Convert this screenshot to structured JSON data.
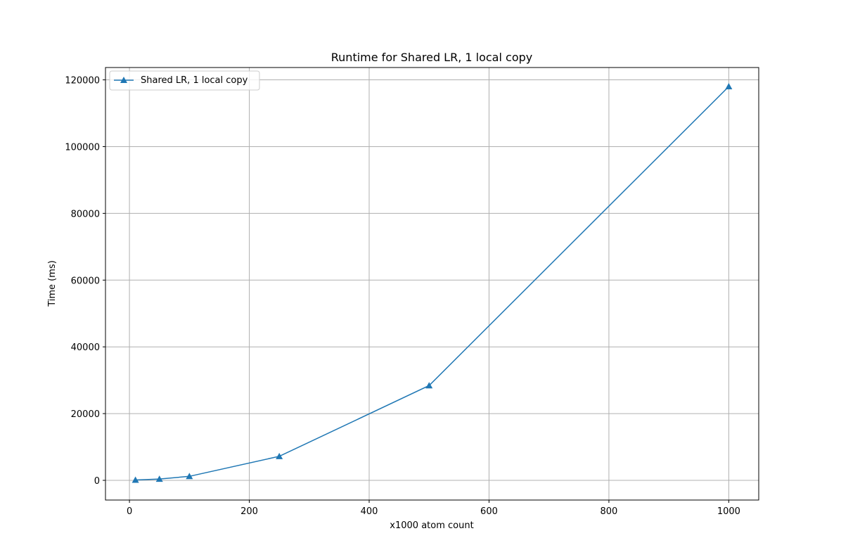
{
  "chart_data": {
    "type": "line",
    "title": "Runtime for Shared LR, 1 local copy",
    "xlabel": "x1000 atom count",
    "ylabel": "Time (ms)",
    "xlim": [
      -40,
      1050
    ],
    "ylim": [
      -5900,
      123700
    ],
    "xticks": [
      0,
      200,
      400,
      600,
      800,
      1000
    ],
    "yticks": [
      0,
      20000,
      40000,
      60000,
      80000,
      100000,
      120000
    ],
    "grid": true,
    "legend_position": "top-left",
    "series": [
      {
        "name": "Shared LR, 1 local copy",
        "color": "#1f77b4",
        "marker": "triangle",
        "x": [
          10,
          50,
          100,
          250,
          500,
          1000
        ],
        "y": [
          100,
          400,
          1200,
          7200,
          28400,
          118000
        ]
      }
    ]
  }
}
